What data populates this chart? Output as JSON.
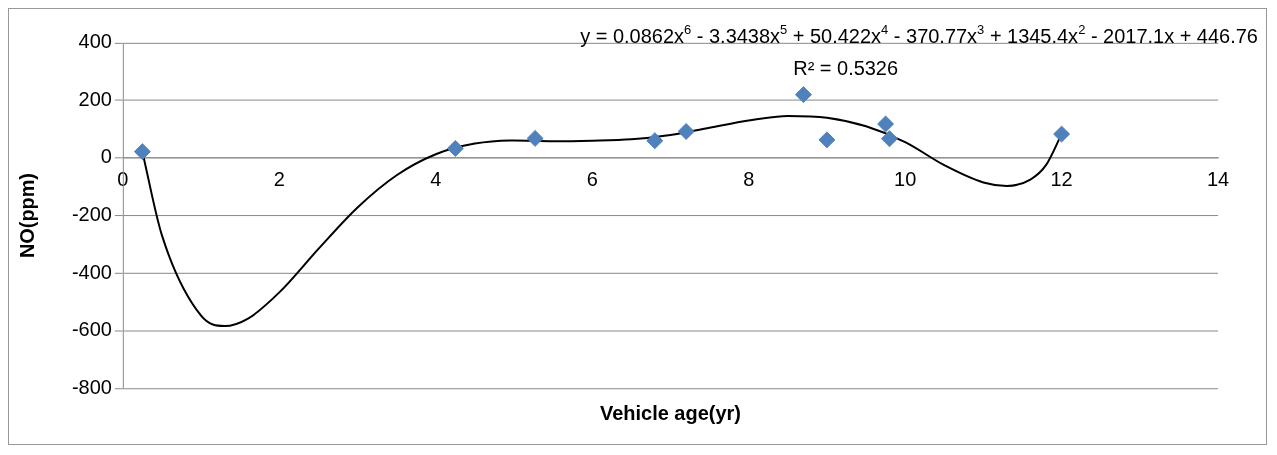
{
  "chart_data": {
    "type": "scatter",
    "xlabel": "Vehicle age(yr)",
    "ylabel": "NO(ppm)",
    "xlim": [
      0,
      14
    ],
    "xticks": [
      0,
      2,
      4,
      6,
      8,
      10,
      12,
      14
    ],
    "ylim": [
      -800,
      400
    ],
    "yticks": [
      -800,
      -600,
      -400,
      -200,
      0,
      200,
      400
    ],
    "grid": "y",
    "legend": false,
    "series": [
      {
        "color": "#4f81bd",
        "marker": "diamond",
        "x": [
          0.25,
          4.25,
          5.27,
          6.8,
          7.2,
          8.7,
          9.0,
          9.75,
          9.8,
          12.0
        ],
        "values": [
          22,
          33,
          68,
          60,
          92,
          220,
          63,
          118,
          67,
          83
        ]
      },
      {
        "type": "line",
        "color": "#000000",
        "marker": "none",
        "line_style": "solid",
        "x": [
          0.25,
          0.5,
          1,
          1.3,
          1.6,
          2,
          2.5,
          3,
          3.5,
          4,
          4.5,
          5,
          5.5,
          6,
          6.5,
          7,
          7.5,
          8,
          8.5,
          9,
          9.5,
          10,
          10.5,
          11,
          11.3,
          11.6,
          11.8,
          12
        ],
        "values": [
          21,
          -269,
          -548,
          -584,
          -558,
          -467,
          -316,
          -172,
          -60,
          13,
          50,
          61,
          58,
          60,
          65,
          80,
          105,
          130,
          146,
          140,
          110,
          55,
          -25,
          -85,
          -97,
          -75,
          -25,
          83
        ]
      }
    ],
    "annotations": [
      "y = 0.0862x$^{6}$ - 3.3438x$^{5}$ + 50.422x$^{4}$ - 370.77x$^{3}$ + 1345.4x$^{2}$ - 2017.1x + 446.76",
      "R² = 0.5326"
    ]
  }
}
